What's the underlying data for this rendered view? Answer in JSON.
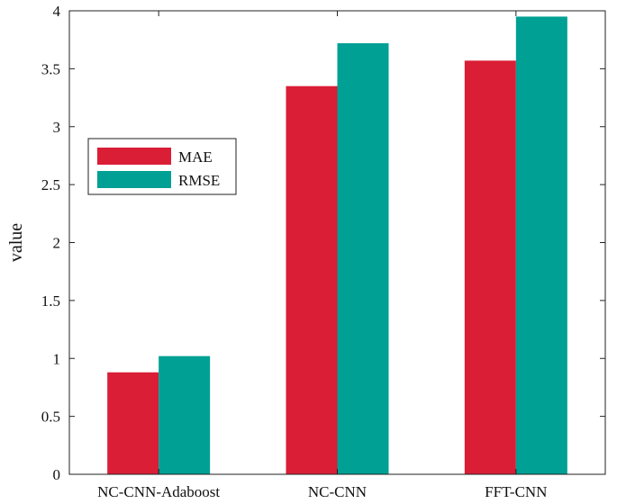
{
  "chart_data": {
    "type": "bar",
    "categories": [
      "NC-CNN-Adaboost",
      "NC-CNN",
      "FFT-CNN"
    ],
    "series": [
      {
        "name": "MAE",
        "color": "#d91e36",
        "values": [
          0.88,
          3.35,
          3.57
        ]
      },
      {
        "name": "RMSE",
        "color": "#00a094",
        "values": [
          1.02,
          3.72,
          3.95
        ]
      }
    ],
    "title": "",
    "xlabel": "",
    "ylabel": "value",
    "ylim": [
      0,
      4
    ],
    "yticks": [
      "0",
      "0.5",
      "1",
      "1.5",
      "2",
      "2.5",
      "3",
      "3.5",
      "4"
    ],
    "grid": false,
    "legend_position": "center-left"
  }
}
